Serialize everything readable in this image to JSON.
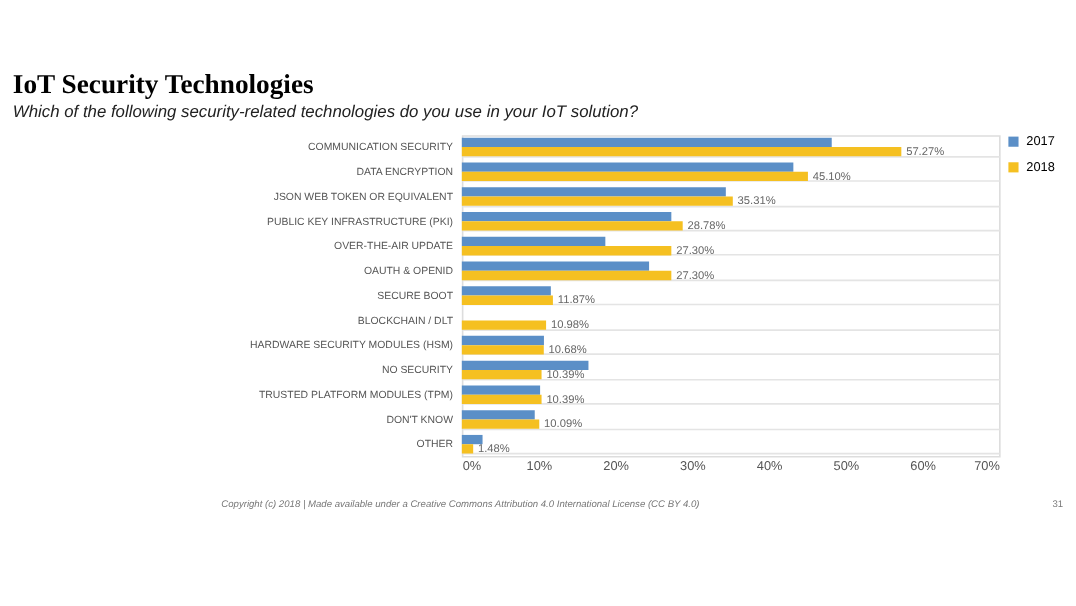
{
  "chart_data": {
    "type": "bar",
    "orientation": "horizontal",
    "title": "IoT Security Technologies",
    "subtitle": "Which of the following security-related technologies do you use in your IoT solution?",
    "categories": [
      "COMMUNICATION SECURITY",
      "DATA ENCRYPTION",
      "JSON WEB TOKEN OR EQUIVALENT",
      "PUBLIC KEY INFRASTRUCTURE (PKI)",
      "OVER-THE-AIR UPDATE",
      "OAUTH & OPENID",
      "SECURE BOOT",
      "BLOCKCHAIN / DLT",
      "HARDWARE SECURITY MODULES (HSM)",
      "NO SECURITY",
      "TRUSTED PLATFORM MODULES (TPM)",
      "DON'T KNOW",
      "OTHER"
    ],
    "series": [
      {
        "name": "2017",
        "color": "#5b8fc7",
        "values": [
          48.2,
          43.2,
          34.4,
          27.3,
          18.7,
          24.4,
          11.6,
          null,
          10.7,
          16.5,
          10.2,
          9.5,
          2.7
        ]
      },
      {
        "name": "2018",
        "color": "#f5c021",
        "values": [
          57.27,
          45.1,
          35.31,
          28.78,
          27.3,
          27.3,
          11.87,
          10.98,
          10.68,
          10.39,
          10.39,
          10.09,
          1.48
        ],
        "value_labels": [
          "57.27%",
          "45.10%",
          "35.31%",
          "28.78%",
          "27.30%",
          "27.30%",
          "11.87%",
          "10.98%",
          "10.68%",
          "10.39%",
          "10.39%",
          "10.09%",
          "1.48%"
        ]
      }
    ],
    "xlim": [
      0,
      70
    ],
    "xticks": [
      {
        "value": 0,
        "label": "0%"
      },
      {
        "value": 10,
        "label": "10%"
      },
      {
        "value": 20,
        "label": "20%"
      },
      {
        "value": 30,
        "label": "30%"
      },
      {
        "value": 40,
        "label": "40%"
      },
      {
        "value": 50,
        "label": "50%"
      },
      {
        "value": 60,
        "label": "60%"
      },
      {
        "value": 70,
        "label": "70%"
      }
    ],
    "grid": "y",
    "legend": "top right",
    "annotations": [
      "Copyright (c) 2018 | Made available under a Creative Commons Attribution 4.0 International License (CC BY 4.0)",
      "31"
    ]
  }
}
